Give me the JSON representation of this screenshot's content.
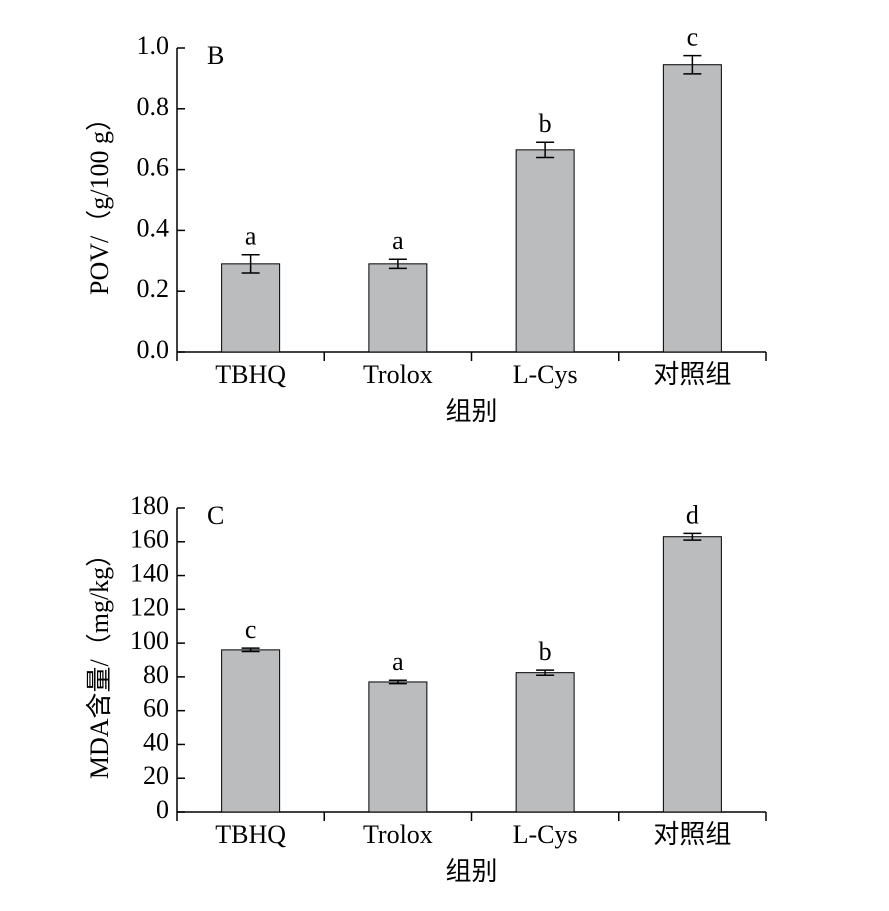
{
  "chart_data": [
    {
      "type": "bar",
      "panel": "B",
      "y_label": "POV/（g/100 g）",
      "x_label": "组别",
      "categories": [
        "TBHQ",
        "Trolox",
        "L-Cys",
        "对照组"
      ],
      "values": [
        0.29,
        0.29,
        0.665,
        0.945
      ],
      "errors": [
        0.03,
        0.015,
        0.025,
        0.03
      ],
      "annotations": [
        "a",
        "a",
        "b",
        "c"
      ],
      "color": "#bbbcbe",
      "ylim": [
        0,
        1.0
      ],
      "yticks": [
        {
          "value": 0,
          "label": "0.0"
        },
        0.2,
        0.4,
        0.6,
        0.8,
        {
          "value": 1.0,
          "label": "1.0"
        }
      ]
    },
    {
      "type": "bar",
      "panel": "C",
      "y_label": "MDA含量/（mg/kg）",
      "x_label": "组别",
      "categories": [
        "TBHQ",
        "Trolox",
        "L-Cys",
        "对照组"
      ],
      "values": [
        96,
        77,
        82.5,
        163
      ],
      "errors": [
        1,
        1,
        1.5,
        2
      ],
      "annotations": [
        "c",
        "a",
        "b",
        "d"
      ],
      "color": "#bbbcbe",
      "ylim": [
        0,
        180
      ],
      "yticks": [
        0,
        20,
        40,
        60,
        80,
        100,
        120,
        140,
        160,
        180
      ]
    }
  ]
}
